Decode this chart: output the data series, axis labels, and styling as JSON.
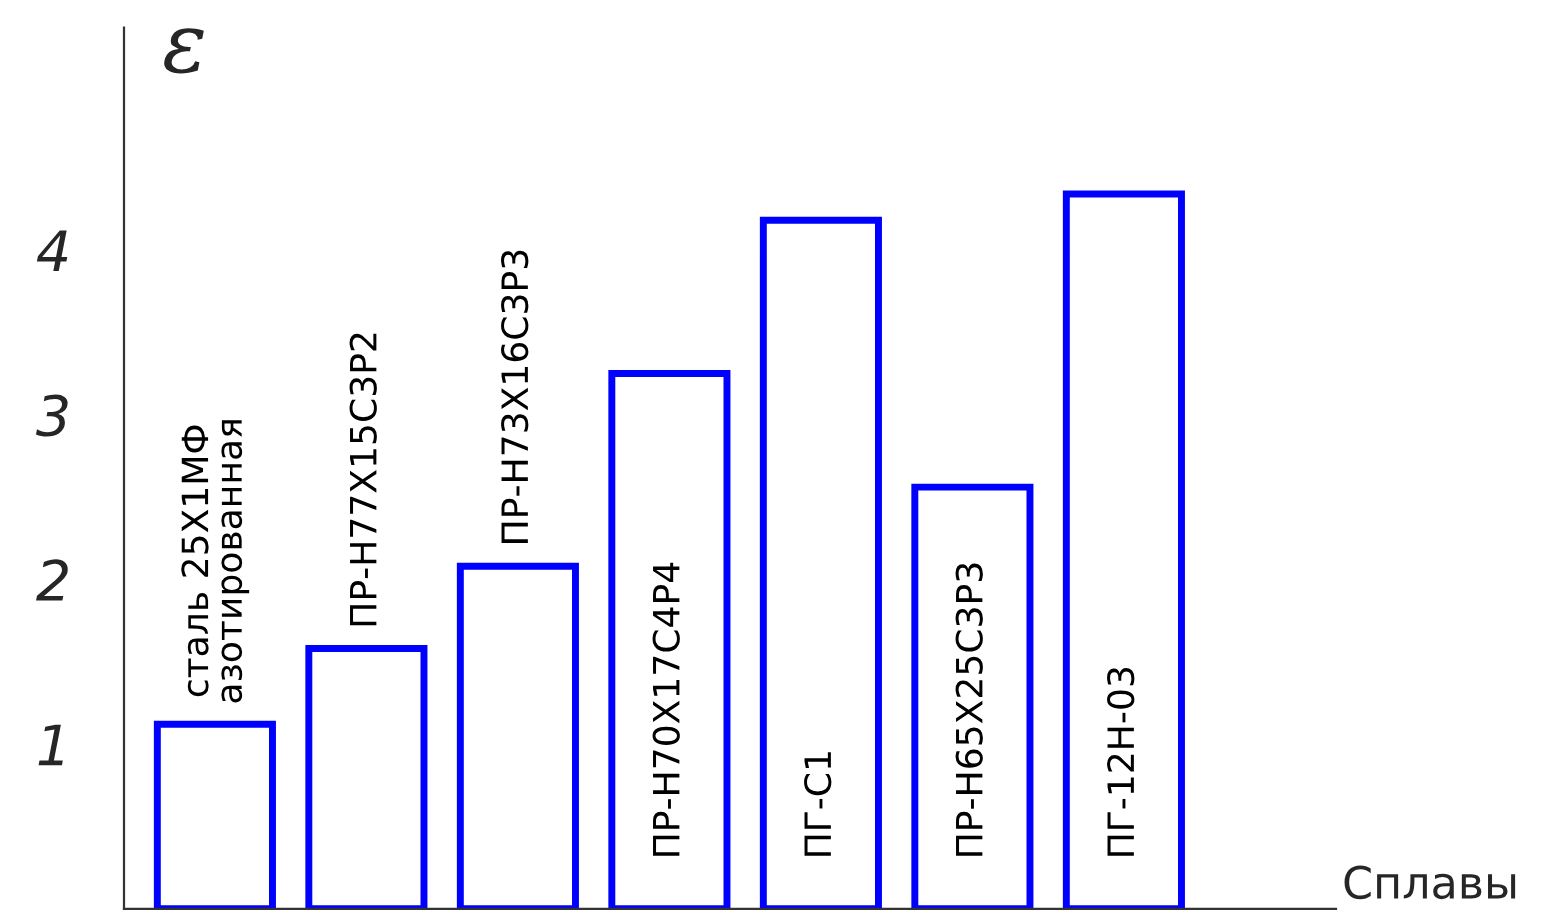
{
  "chart_data": {
    "type": "bar",
    "ylabel": "ε",
    "xlabel": "Сплавы",
    "categories": [
      "сталь 25Х1МФ\nазотированная",
      "ПР-Н77Х15С3Р2",
      "ПР-Н73Х16С3Р3",
      "ПР-Н70Х17С4Р4",
      "ПГ-С1",
      "ПР-Н65Х25С3Р3",
      "ПГ-12Н-03"
    ],
    "values": [
      1.12,
      1.58,
      2.08,
      3.25,
      4.18,
      2.56,
      4.34
    ],
    "color": "#0000ff",
    "ylim": [
      0,
      5.35
    ],
    "yticks": [
      1,
      2,
      3,
      4
    ],
    "grid": false,
    "legend": false
  }
}
